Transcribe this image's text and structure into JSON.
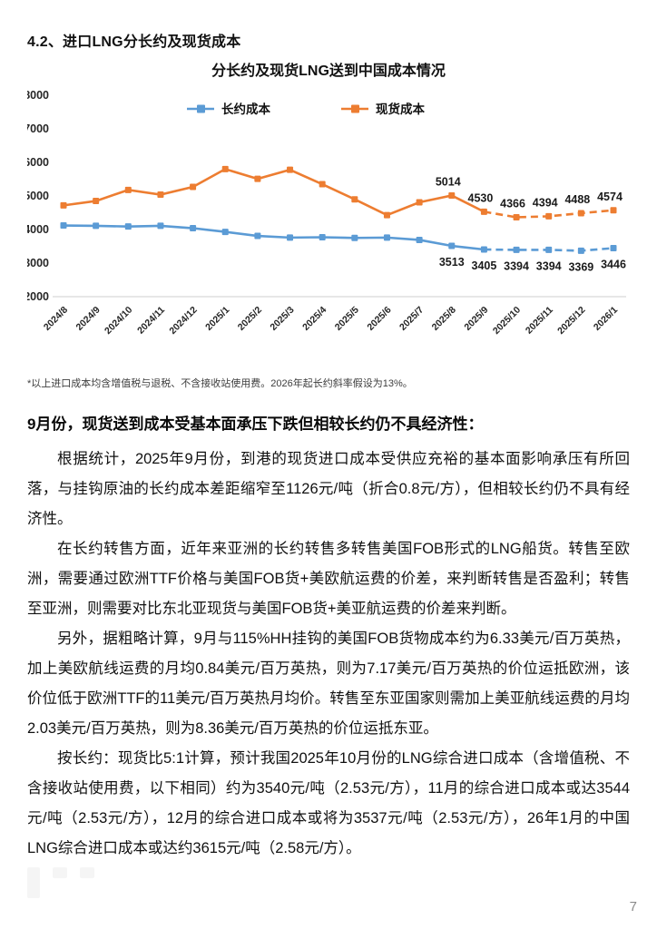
{
  "page": {
    "section_title": "4.2、进口LNG分长约及现货成本",
    "footnote": "*以上进口成本均含增值税与退税、不含接收站使用费。2026年起长约斜率假设为13%。",
    "page_number": "7"
  },
  "chart_data": {
    "type": "line",
    "title": "分长约及现货LNG送到中国成本情况",
    "categories": [
      "2024/8",
      "2024/9",
      "2024/10",
      "2024/11",
      "2024/12",
      "2025/1",
      "2025/2",
      "2025/3",
      "2025/4",
      "2025/5",
      "2025/6",
      "2025/7",
      "2025/8",
      "2025/9",
      "2025/10",
      "2025/11",
      "2025/12",
      "2026/1"
    ],
    "series": [
      {
        "name": "长约成本",
        "color": "#5B9BD5",
        "values": [
          4120,
          4110,
          4090,
          4110,
          4040,
          3930,
          3810,
          3760,
          3770,
          3750,
          3760,
          3690,
          3513,
          3405,
          3394,
          3394,
          3369,
          3446
        ],
        "solid_until_index": 13,
        "labeled_from_index": 12,
        "label_position": "below"
      },
      {
        "name": "现货成本",
        "color": "#ED7D31",
        "values": [
          4720,
          4850,
          5180,
          5040,
          5270,
          5800,
          5510,
          5780,
          5350,
          4900,
          4430,
          4810,
          5014,
          4530,
          4366,
          4394,
          4488,
          4574
        ],
        "solid_until_index": 13,
        "labeled_from_index": 12,
        "label_position": "above"
      }
    ],
    "ylim": [
      2000,
      8000
    ],
    "ytick_step": 1000,
    "grid": false,
    "legend_position": "top-inside",
    "axis_color": "#cfcfcf",
    "tick_label_color": "#262626",
    "data_label_color": "#1a1a1a"
  },
  "article": {
    "heading": "9月份，现货送到成本受基本面承压下跌但相较长约仍不具经济性：",
    "paragraphs": [
      "根据统计，2025年9月份，到港的现货进口成本受供应充裕的基本面影响承压有所回落，与挂钩原油的长约成本差距缩窄至1126元/吨（折合0.8元/方），但相较长约仍不具有经济性。",
      "在长约转售方面，近年来亚洲的长约转售多转售美国FOB形式的LNG船货。转售至欧洲，需要通过欧洲TTF价格与美国FOB货+美欧航运费的价差，来判断转售是否盈利；转售至亚洲，则需要对比东北亚现货与美国FOB货+美亚航运费的价差来判断。",
      "另外，据粗略计算，9月与115%HH挂钩的美国FOB货物成本约为6.33美元/百万英热，加上美欧航线运费的月均0.84美元/百万英热，则为7.17美元/百万英热的价位运抵欧洲，该价位低于欧洲TTF的11美元/百万英热月均价。转售至东亚国家则需加上美亚航线运费的月均2.03美元/百万英热，则为8.36美元/百万英热的价位运抵东亚。",
      "按长约：现货比5:1计算，预计我国2025年10月份的LNG综合进口成本（含增值税、不含接收站使用费，以下相同）约为3540元/吨（2.53元/方），11月的综合进口成本或达3544元/吨（2.53元/方），12月的综合进口成本或将为3537元/吨（2.53元/方），26年1月的中国LNG综合进口成本或达约3615元/吨（2.58元/方）。"
    ]
  }
}
